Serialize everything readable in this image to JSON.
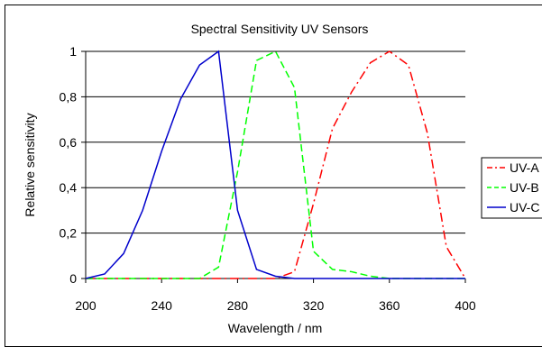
{
  "chart_data": {
    "type": "line",
    "title": "Spectral Sensitivity UV Sensors",
    "xlabel": "Wavelength / nm",
    "ylabel": "Relative sensitivity",
    "xlim": [
      200,
      400
    ],
    "ylim": [
      0,
      1
    ],
    "x_ticks": [
      "200",
      "240",
      "280",
      "320",
      "360",
      "400"
    ],
    "y_ticks": [
      "0",
      "0,2",
      "0,4",
      "0,6",
      "0,8",
      "1"
    ],
    "grid": "horizontal",
    "legend_position": "right",
    "series": [
      {
        "name": "UV-A",
        "color": "#ff0000",
        "style": "dash-dot",
        "x": [
          200,
          210,
          220,
          230,
          240,
          250,
          260,
          270,
          280,
          290,
          300,
          310,
          320,
          330,
          340,
          350,
          360,
          370,
          380,
          390,
          400
        ],
        "y": [
          0,
          0,
          0,
          0,
          0,
          0,
          0,
          0,
          0,
          0,
          0,
          0.03,
          0.33,
          0.66,
          0.82,
          0.95,
          1.0,
          0.94,
          0.64,
          0.14,
          0
        ]
      },
      {
        "name": "UV-B",
        "color": "#00ff00",
        "style": "dashed",
        "x": [
          200,
          210,
          220,
          230,
          240,
          250,
          260,
          270,
          280,
          290,
          300,
          310,
          320,
          330,
          340,
          350,
          360,
          370,
          380,
          390,
          400
        ],
        "y": [
          0,
          0,
          0,
          0,
          0,
          0,
          0,
          0.05,
          0.47,
          0.96,
          1.0,
          0.84,
          0.12,
          0.04,
          0.03,
          0.01,
          0,
          0,
          0,
          0,
          0
        ]
      },
      {
        "name": "UV-C",
        "color": "#0000cc",
        "style": "solid",
        "x": [
          200,
          210,
          220,
          230,
          240,
          250,
          260,
          270,
          280,
          290,
          300,
          310,
          320,
          330,
          340,
          350,
          360,
          370,
          380,
          390,
          400
        ],
        "y": [
          0,
          0.02,
          0.11,
          0.3,
          0.56,
          0.79,
          0.94,
          1.0,
          0.3,
          0.04,
          0.01,
          0,
          0,
          0,
          0,
          0,
          0,
          0,
          0,
          0,
          0
        ]
      }
    ]
  }
}
